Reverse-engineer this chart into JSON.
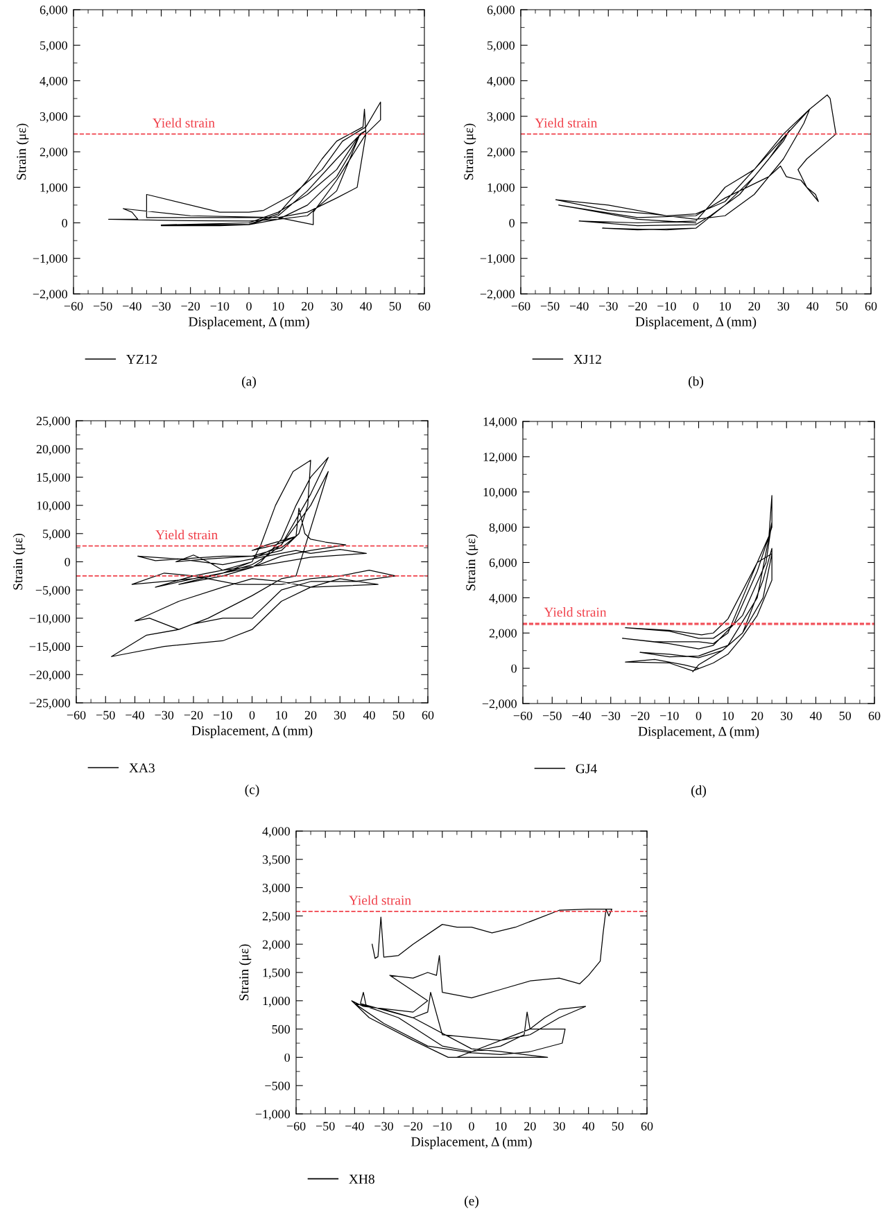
{
  "chart_data": [
    {
      "type": "line",
      "xlabel": "Displacement, Δ (mm)",
      "ylabel": "Strain (με)",
      "annotations": [
        "(a)"
      ],
      "legend": "bottom",
      "grid": false,
      "marker": "none",
      "line_style": "solid",
      "xlim": [
        -60,
        60
      ],
      "xticks": [
        {
          "value": -60,
          "label": "−60"
        },
        {
          "value": -50,
          "label": "−50"
        },
        {
          "value": -40,
          "label": "−40"
        },
        {
          "value": -30,
          "label": "−30"
        },
        {
          "value": -20,
          "label": "−20"
        },
        {
          "value": -10,
          "label": "−10"
        },
        0,
        10,
        20,
        30,
        40,
        50,
        60
      ],
      "ylim": [
        -2000,
        6000
      ],
      "yticks": [
        {
          "value": -2000,
          "label": "−2,000"
        },
        {
          "value": -1000,
          "label": "−1,000"
        },
        0,
        {
          "value": 1000,
          "label": "1,000"
        },
        {
          "value": 2000,
          "label": "2,000"
        },
        {
          "value": 3000,
          "label": "3,000"
        },
        {
          "value": 4000,
          "label": "4,000"
        },
        {
          "value": 5000,
          "label": "5,000"
        },
        {
          "value": 6000,
          "label": "6,000"
        }
      ],
      "ref_lines": [
        {
          "axis": "y",
          "value": 2500,
          "label": "Yield strain",
          "color": "#f0404a",
          "line_style": "dashed"
        }
      ],
      "series": [
        {
          "name": "YZ12",
          "color": "#000000",
          "x": [
            0,
            10,
            20,
            30,
            37,
            40,
            38,
            35,
            30,
            20,
            10,
            0,
            -10,
            -30,
            -10,
            0,
            10,
            20,
            25,
            30,
            39,
            39.5,
            40,
            37,
            30,
            20,
            10,
            -20,
            -35,
            -35,
            -10,
            0,
            5,
            15,
            25,
            32,
            40,
            45,
            45,
            40,
            30,
            22,
            22,
            10,
            -20,
            -43,
            -40,
            -38,
            -48,
            -20,
            0,
            10,
            20,
            30,
            38,
            30,
            20,
            10,
            0,
            -30,
            0
          ],
          "values": [
            -50,
            200,
            900,
            1800,
            2400,
            2600,
            2500,
            2000,
            1300,
            500,
            100,
            -50,
            -80,
            -80,
            -60,
            -40,
            250,
            1200,
            1800,
            2300,
            2700,
            3200,
            2500,
            1000,
            700,
            300,
            150,
            150,
            150,
            800,
            300,
            300,
            350,
            800,
            1500,
            2300,
            2700,
            3400,
            2900,
            2500,
            1200,
            300,
            -50,
            150,
            200,
            400,
            300,
            100,
            100,
            60,
            50,
            100,
            200,
            900,
            2500,
            1500,
            800,
            300,
            0,
            -60,
            -40
          ]
        }
      ]
    },
    {
      "type": "line",
      "xlabel": "Displacement, Δ (mm)",
      "ylabel": "Strain (με)",
      "annotations": [
        "(b)"
      ],
      "legend": "bottom",
      "grid": false,
      "marker": "none",
      "line_style": "solid",
      "xlim": [
        -60,
        60
      ],
      "xticks": [
        {
          "value": -60,
          "label": "−60"
        },
        {
          "value": -50,
          "label": "−50"
        },
        {
          "value": -40,
          "label": "−40"
        },
        {
          "value": -30,
          "label": "−30"
        },
        {
          "value": -20,
          "label": "−20"
        },
        {
          "value": -10,
          "label": "−10"
        },
        0,
        10,
        20,
        30,
        40,
        50,
        60
      ],
      "ylim": [
        -2000,
        6000
      ],
      "yticks": [
        {
          "value": -2000,
          "label": "−2,000"
        },
        {
          "value": -1000,
          "label": "−1,000"
        },
        0,
        {
          "value": 1000,
          "label": "1,000"
        },
        {
          "value": 2000,
          "label": "2,000"
        },
        {
          "value": 3000,
          "label": "3,000"
        },
        {
          "value": 4000,
          "label": "4,000"
        },
        {
          "value": 5000,
          "label": "5,000"
        },
        {
          "value": 6000,
          "label": "6,000"
        }
      ],
      "ref_lines": [
        {
          "axis": "y",
          "value": 2500,
          "label": "Yield strain",
          "color": "#f0404a",
          "line_style": "dashed"
        }
      ],
      "series": [
        {
          "name": "XJ12",
          "color": "#000000",
          "x": [
            0,
            -20,
            -32,
            -10,
            0,
            10,
            20,
            30,
            32,
            25,
            15,
            5,
            0,
            -20,
            -40,
            -20,
            0,
            8,
            10,
            14,
            20,
            30,
            39,
            37,
            30,
            20,
            10,
            0,
            -15,
            -30,
            -48,
            -30,
            -10,
            0,
            10,
            20,
            39,
            45,
            46,
            48,
            38,
            35,
            38,
            41,
            42,
            36,
            31,
            29,
            25,
            10,
            0,
            -20,
            -47,
            -40,
            -20,
            0
          ],
          "values": [
            -150,
            -200,
            -150,
            -200,
            -150,
            500,
            1300,
            2300,
            2600,
            1800,
            800,
            200,
            -50,
            -80,
            50,
            0,
            50,
            800,
            1000,
            1200,
            1500,
            2500,
            3200,
            2800,
            1800,
            800,
            200,
            100,
            250,
            350,
            650,
            500,
            200,
            250,
            600,
            1500,
            3200,
            3600,
            3500,
            2500,
            1800,
            1500,
            1000,
            800,
            600,
            1200,
            1300,
            1600,
            1300,
            700,
            200,
            150,
            500,
            400,
            100,
            0
          ]
        }
      ]
    },
    {
      "type": "line",
      "xlabel": "Displacement, Δ (mm)",
      "ylabel": "Strain (με)",
      "annotations": [
        "(c)"
      ],
      "legend": "bottom",
      "grid": false,
      "marker": "none",
      "line_style": "solid",
      "xlim": [
        -60,
        60
      ],
      "xticks": [
        {
          "value": -60,
          "label": "−60"
        },
        {
          "value": -50,
          "label": "−50"
        },
        {
          "value": -40,
          "label": "−40"
        },
        {
          "value": -30,
          "label": "−30"
        },
        {
          "value": -20,
          "label": "−20"
        },
        {
          "value": -10,
          "label": "−10"
        },
        0,
        10,
        20,
        30,
        40,
        50,
        60
      ],
      "ylim": [
        -25000,
        25000
      ],
      "yticks": [
        {
          "value": -25000,
          "label": "−25,000"
        },
        {
          "value": -20000,
          "label": "−20,000"
        },
        {
          "value": -15000,
          "label": "−15,000"
        },
        {
          "value": -10000,
          "label": "−10,000"
        },
        {
          "value": -5000,
          "label": "−5,000"
        },
        0,
        {
          "value": 5000,
          "label": "5,000"
        },
        {
          "value": 10000,
          "label": "10,000"
        },
        {
          "value": 15000,
          "label": "15,000"
        },
        {
          "value": 20000,
          "label": "20,000"
        },
        {
          "value": 25000,
          "label": "25,000"
        }
      ],
      "ref_lines": [
        {
          "axis": "y",
          "value": 2800,
          "label": "Yield strain",
          "color": "#f0404a",
          "line_style": "dashed"
        },
        {
          "axis": "y",
          "value": -2500,
          "color": "#f0404a",
          "line_style": "dashed"
        }
      ],
      "series": [
        {
          "name": "XA3",
          "color": "#000000",
          "x": [
            0,
            -10,
            -25,
            -10,
            0,
            3,
            10,
            15,
            20,
            26,
            20,
            10,
            5,
            0,
            -10,
            -20,
            -33,
            -20,
            -10,
            0,
            3,
            8,
            14,
            20,
            19,
            16,
            10,
            2,
            -10,
            -33,
            -39,
            -25,
            -10,
            0,
            5,
            15,
            20,
            30,
            39,
            20,
            5,
            -10,
            -15,
            -20,
            -26,
            -15,
            0,
            10,
            15,
            5,
            0,
            8,
            15,
            16,
            18,
            20,
            25,
            32,
            20,
            10,
            0,
            -20,
            -41,
            -30,
            -20,
            -5,
            10,
            20,
            30,
            40,
            49,
            35,
            20,
            10,
            0,
            -10,
            -20,
            -25,
            -36,
            -48,
            -30,
            -10,
            0,
            10,
            20,
            30,
            43,
            20,
            10,
            0,
            -10,
            -25,
            -40,
            -35,
            -25,
            -15,
            0,
            10,
            15,
            26,
            20,
            10,
            0
          ],
          "values": [
            0,
            -2000,
            -4000,
            -2500,
            -1000,
            0,
            4000,
            10000,
            15000,
            18500,
            12000,
            3000,
            1000,
            -500,
            -2000,
            -3000,
            -4500,
            -2500,
            -1500,
            0,
            3000,
            10000,
            16000,
            18000,
            10000,
            5000,
            2000,
            1000,
            1000,
            200,
            1000,
            500,
            -500,
            500,
            1000,
            2000,
            1500,
            2200,
            1500,
            800,
            -500,
            -1500,
            0,
            1200,
            0,
            500,
            1000,
            2500,
            4500,
            3000,
            2000,
            3000,
            4500,
            9500,
            5000,
            4000,
            3500,
            3000,
            2000,
            1000,
            -1000,
            -3000,
            -4000,
            -2000,
            -2500,
            -4000,
            -4000,
            -3000,
            -2500,
            -1500,
            -2500,
            -3500,
            -3500,
            -5000,
            -10000,
            -10000,
            -11000,
            -12000,
            -13000,
            -16800,
            -15000,
            -14000,
            -12000,
            -7000,
            -4500,
            -3000,
            -4000,
            -4500,
            -3500,
            -3000,
            -4500,
            -7000,
            -10500,
            -10000,
            -12000,
            -10000,
            -6000,
            -3000,
            -2500,
            16000,
            10000,
            3000,
            500
          ]
        }
      ]
    },
    {
      "type": "line",
      "xlabel": "Displacement, Δ (mm)",
      "ylabel": "Strain (με)",
      "annotations": [
        "(d)"
      ],
      "legend": "bottom",
      "grid": false,
      "marker": "none",
      "line_style": "solid",
      "xlim": [
        -60,
        60
      ],
      "xticks": [
        {
          "value": -60,
          "label": "−60"
        },
        {
          "value": -50,
          "label": "−50"
        },
        {
          "value": -40,
          "label": "−40"
        },
        {
          "value": -30,
          "label": "−30"
        },
        {
          "value": -20,
          "label": "−20"
        },
        {
          "value": -10,
          "label": "−10"
        },
        0,
        10,
        20,
        30,
        40,
        50,
        60
      ],
      "ylim": [
        -2000,
        14000
      ],
      "yticks": [
        {
          "value": -2000,
          "label": "−2,000"
        },
        0,
        {
          "value": 2000,
          "label": "2,000"
        },
        {
          "value": 4000,
          "label": "4,000"
        },
        {
          "value": 6000,
          "label": "6,000"
        },
        {
          "value": 8000,
          "label": "8,000"
        },
        {
          "value": 10000,
          "label": "10,000"
        },
        {
          "value": 12000,
          "label": "12,000"
        },
        {
          "value": 14000,
          "label": "14,000"
        }
      ],
      "ref_lines": [
        {
          "axis": "y",
          "value": 2550,
          "label": "Yield strain",
          "color": "#f0404a",
          "line_style": "dashed"
        },
        {
          "axis": "y",
          "value": 2480,
          "color": "#f0404a",
          "line_style": "dashed"
        }
      ],
      "series": [
        {
          "name": "GJ4",
          "color": "#000000",
          "x": [
            0,
            -5,
            -15,
            -25,
            -10,
            -2,
            5,
            10,
            15,
            20,
            25,
            25,
            22,
            15,
            8,
            0,
            -10,
            -20,
            -10,
            0,
            10,
            20,
            25,
            23,
            15,
            5,
            0,
            -10,
            -26,
            -15,
            0,
            5,
            10,
            15,
            20,
            24,
            25,
            25,
            20,
            12,
            5,
            0,
            -10,
            -25,
            -10,
            1,
            5,
            10,
            20,
            25,
            22,
            15,
            8,
            0,
            -2
          ],
          "values": [
            0,
            200,
            500,
            350,
            300,
            -150,
            300,
            800,
            1800,
            3000,
            5000,
            6800,
            5000,
            2000,
            1000,
            600,
            800,
            900,
            650,
            700,
            1300,
            4000,
            8300,
            6000,
            3000,
            1300,
            1100,
            1400,
            1700,
            1500,
            1500,
            1400,
            2000,
            4000,
            6000,
            7500,
            9800,
            8000,
            5500,
            2500,
            1700,
            1700,
            2100,
            2300,
            2150,
            1900,
            2000,
            2800,
            6000,
            6500,
            4000,
            2000,
            1000,
            200,
            -200
          ]
        }
      ]
    },
    {
      "type": "line",
      "xlabel": "Displacement, Δ (mm)",
      "ylabel": "Strain (με)",
      "annotations": [
        "(e)"
      ],
      "legend": "bottom",
      "grid": false,
      "marker": "none",
      "line_style": "solid",
      "xlim": [
        -60,
        60
      ],
      "xticks": [
        {
          "value": -60,
          "label": "−60"
        },
        {
          "value": -50,
          "label": "−50"
        },
        {
          "value": -40,
          "label": "−40"
        },
        {
          "value": -30,
          "label": "−30"
        },
        {
          "value": -20,
          "label": "−20"
        },
        {
          "value": -10,
          "label": "−10"
        },
        0,
        10,
        20,
        30,
        40,
        50,
        60
      ],
      "ylim": [
        -1000,
        4000
      ],
      "yticks": [
        {
          "value": -1000,
          "label": "−1,000"
        },
        {
          "value": -500,
          "label": "−500"
        },
        0,
        500,
        {
          "value": 1000,
          "label": "1,000"
        },
        {
          "value": 1500,
          "label": "1,500"
        },
        {
          "value": 2000,
          "label": "2,000"
        },
        {
          "value": 2500,
          "label": "2,500"
        },
        {
          "value": 3000,
          "label": "3,000"
        },
        {
          "value": 3500,
          "label": "3,500"
        },
        {
          "value": 4000,
          "label": "4,000"
        }
      ],
      "ref_lines": [
        {
          "axis": "y",
          "value": 2580,
          "label": "Yield strain",
          "color": "#f0404a",
          "line_style": "dashed"
        }
      ],
      "series": [
        {
          "name": "XH8",
          "color": "#000000",
          "x": [
            -34,
            -33,
            -32,
            -31,
            -30,
            -25,
            -20,
            -10,
            -5,
            0,
            7,
            15,
            30,
            40,
            48,
            47,
            46,
            45,
            44,
            40,
            37,
            30,
            20,
            10,
            0,
            -10,
            -11,
            -12,
            -15,
            -20,
            -28,
            -15,
            -20,
            -37,
            -41,
            -35,
            -20,
            -8,
            0,
            20,
            26,
            10,
            0,
            -20,
            -38,
            -37,
            -36,
            -25,
            -10,
            0,
            10,
            18,
            19,
            20,
            25,
            30,
            39,
            30,
            20,
            10,
            0,
            -10,
            -14,
            -15,
            -20,
            -30,
            -40,
            -30,
            -15,
            0,
            10,
            20,
            31,
            32,
            20,
            0,
            -5
          ],
          "values": [
            2000,
            1750,
            1780,
            2480,
            1770,
            1800,
            2000,
            2350,
            2300,
            2300,
            2200,
            2300,
            2600,
            2620,
            2620,
            2500,
            2620,
            2200,
            1700,
            1450,
            1300,
            1400,
            1350,
            1200,
            1050,
            1150,
            1800,
            1450,
            1500,
            1400,
            1450,
            1000,
            800,
            900,
            1000,
            700,
            300,
            0,
            0,
            0,
            0,
            100,
            150,
            700,
            950,
            1150,
            900,
            700,
            200,
            100,
            200,
            400,
            800,
            500,
            700,
            850,
            900,
            700,
            400,
            300,
            350,
            400,
            1150,
            800,
            700,
            850,
            950,
            600,
            200,
            80,
            50,
            100,
            250,
            500,
            500,
            100,
            0
          ]
        }
      ]
    }
  ]
}
